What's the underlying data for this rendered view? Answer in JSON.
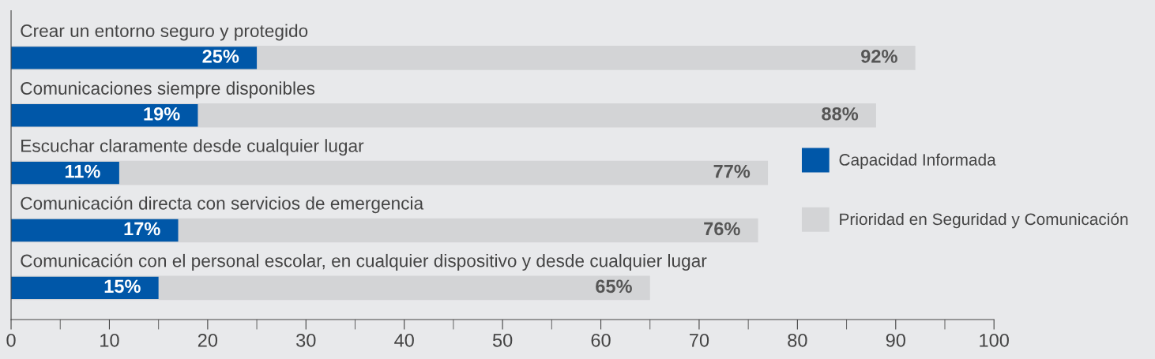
{
  "chart_data": {
    "type": "bar",
    "orientation": "horizontal",
    "categories": [
      "Crear un entorno seguro y protegido",
      "Comunicaciones siempre disponibles",
      "Escuchar claramente desde cualquier lugar",
      "Comunicación directa con servicios de emergencia",
      "Comunicación con el personal escolar, en cualquier dispositivo y desde cualquier lugar"
    ],
    "series": [
      {
        "name": "Prioridad en Seguridad y Comunicación",
        "color": "#d3d4d6",
        "values": [
          92,
          88,
          77,
          76,
          65
        ],
        "value_labels": [
          "92%",
          "88%",
          "77%",
          "76%",
          "65%"
        ]
      },
      {
        "name": "Capacidad Informada",
        "color": "#0057a8",
        "values": [
          25,
          19,
          11,
          17,
          15
        ],
        "value_labels": [
          "25%",
          "19%",
          "11%",
          "17%",
          "15%"
        ]
      }
    ],
    "xlim": [
      0,
      100
    ],
    "xticks": [
      0,
      {
        "value": 5,
        "label": null
      },
      10,
      {
        "value": 15,
        "label": null
      },
      20,
      {
        "value": 25,
        "label": null
      },
      30,
      {
        "value": 35,
        "label": null
      },
      40,
      {
        "value": 45,
        "label": null
      },
      50,
      {
        "value": 55,
        "label": null
      },
      60,
      {
        "value": 65,
        "label": null
      },
      70,
      {
        "value": 75,
        "label": null
      },
      80,
      {
        "value": 85,
        "label": null
      },
      90,
      {
        "value": 95,
        "label": null
      },
      100
    ],
    "grid": false,
    "legend": "right"
  }
}
